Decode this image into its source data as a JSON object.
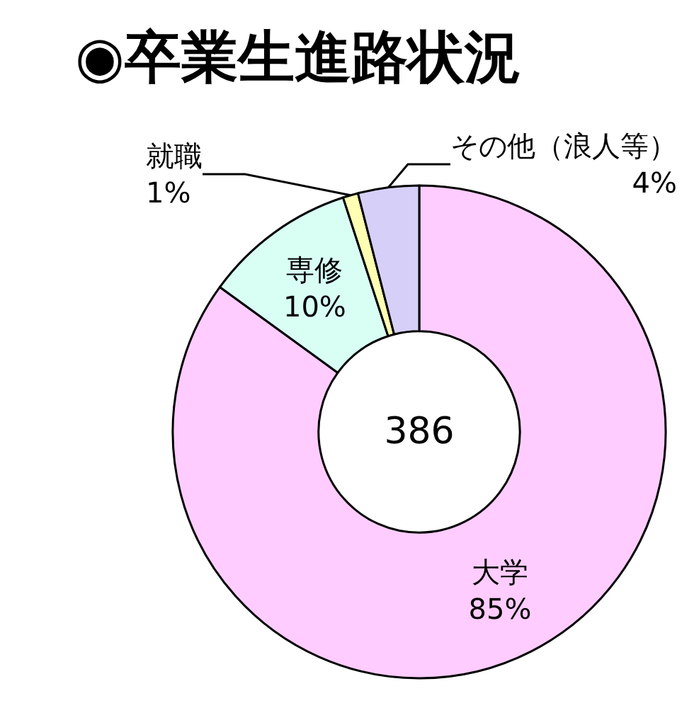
{
  "chart_data": {
    "type": "donut",
    "title": "◉卒業生進路状況",
    "categories": [
      "大学",
      "専修",
      "就職",
      "その他（浪人等）"
    ],
    "values": [
      85,
      10,
      1,
      4
    ],
    "value_labels": [
      "85%",
      "10%",
      "1%",
      "4%"
    ],
    "colors": [
      "#ffccff",
      "#d9fff5",
      "#ffffb3",
      "#d6d0f8"
    ],
    "annotations": [
      "386"
    ],
    "legend": false
  }
}
